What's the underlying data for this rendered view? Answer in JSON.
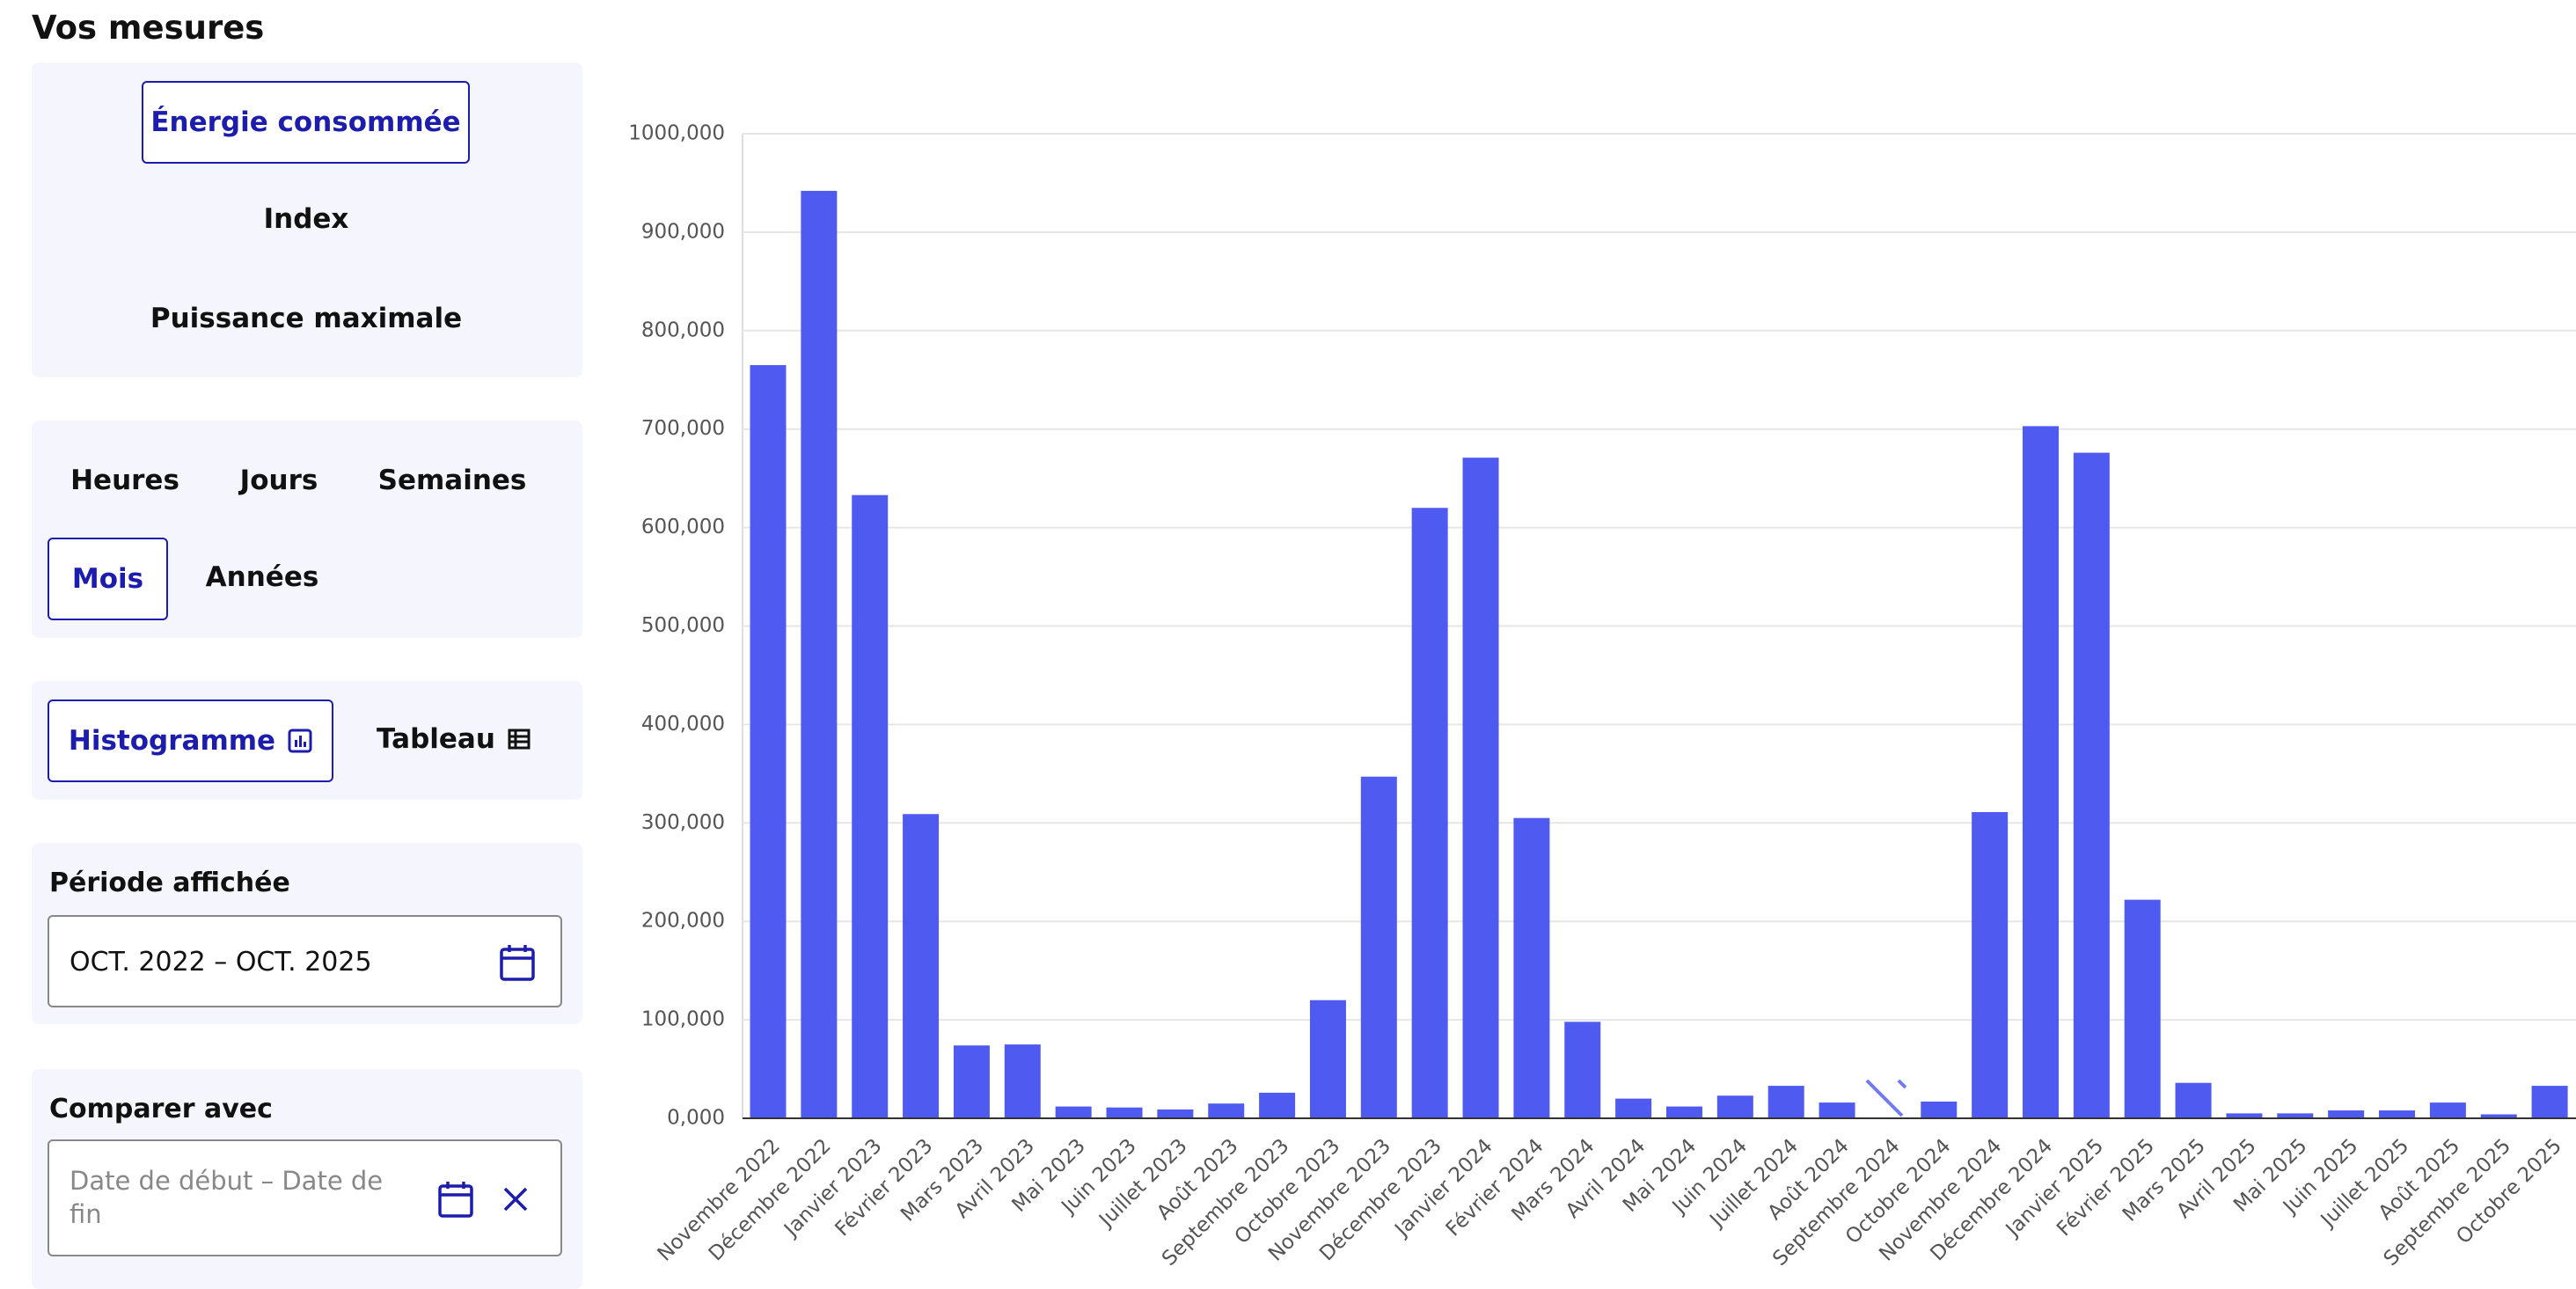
{
  "header": {
    "title": "Vos mesures"
  },
  "measure_panel": {
    "options": [
      "Énergie consommée",
      "Index",
      "Puissance maximale"
    ]
  },
  "step_panel": {
    "options": [
      "Heures",
      "Jours",
      "Semaines",
      "Mois",
      "Années"
    ]
  },
  "view_panel": {
    "options": [
      "Histogramme",
      "Tableau"
    ]
  },
  "period_panel": {
    "label": "Période affichée",
    "value": "OCT. 2022 – OCT. 2025"
  },
  "compare_panel": {
    "label": "Comparer avec",
    "placeholder": "Date de début – Date de fin"
  },
  "chart_data": {
    "type": "bar",
    "color": "#4f5bf0",
    "grid": true,
    "categories": [
      "Novembre 2022",
      "Décembre 2022",
      "Janvier 2023",
      "Février 2023",
      "Mars 2023",
      "Avril 2023",
      "Mai 2023",
      "Juin 2023",
      "Juillet 2023",
      "Août 2023",
      "Septembre 2023",
      "Octobre 2023",
      "Novembre 2023",
      "Décembre 2023",
      "Janvier 2024",
      "Février 2024",
      "Mars 2024",
      "Avril 2024",
      "Mai 2024",
      "Juin 2024",
      "Juillet 2024",
      "Août 2024",
      "Septembre 2024",
      "Octobre 2024",
      "Novembre 2024",
      "Décembre 2024",
      "Janvier 2025",
      "Février 2025",
      "Mars 2025",
      "Avril 2025",
      "Mai 2025",
      "Juin 2025",
      "Juillet 2025",
      "Août 2025",
      "Septembre 2025",
      "Octobre 2025"
    ],
    "values": [
      765000,
      942000,
      633000,
      309000,
      74000,
      75000,
      12000,
      11000,
      9000,
      15000,
      26000,
      120000,
      347000,
      620000,
      671000,
      305000,
      98000,
      20000,
      12000,
      23000,
      33000,
      16000,
      null,
      17000,
      311000,
      703000,
      676000,
      222000,
      36000,
      5000,
      5000,
      8000,
      8000,
      16000,
      4000,
      33000
    ],
    "ylim": [
      0,
      1000000
    ],
    "yticks": [
      {
        "value": 0,
        "label": "0,000"
      },
      {
        "value": 100000,
        "label": "100,000"
      },
      {
        "value": 200000,
        "label": "200,000"
      },
      {
        "value": 300000,
        "label": "300,000"
      },
      {
        "value": 400000,
        "label": "400,000"
      },
      {
        "value": 500000,
        "label": "500,000"
      },
      {
        "value": 600000,
        "label": "600,000"
      },
      {
        "value": 700000,
        "label": "700,000"
      },
      {
        "value": 800000,
        "label": "800,000"
      },
      {
        "value": 900000,
        "label": "900,000"
      },
      {
        "value": 1000000,
        "label": "1000,000"
      }
    ]
  }
}
